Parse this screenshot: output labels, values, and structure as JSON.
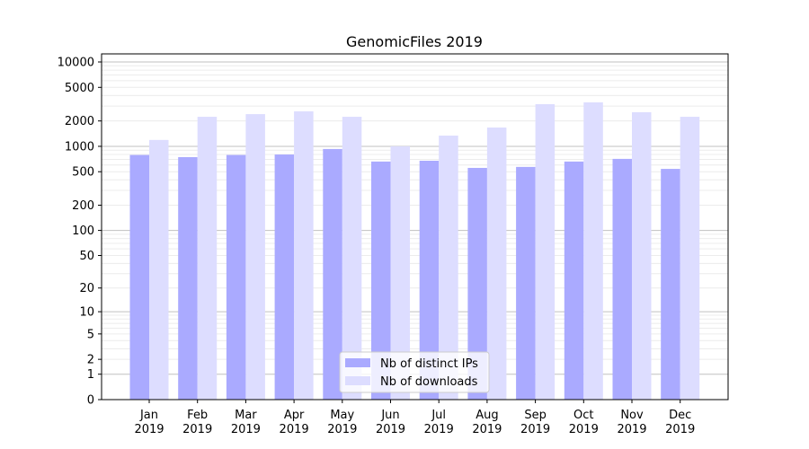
{
  "chart_data": {
    "type": "bar",
    "title": "GenomicFiles 2019",
    "xlabel": "",
    "ylabel": "",
    "yscale": "symlog",
    "ylim": [
      0,
      13000
    ],
    "grid": true,
    "legend_placement": "lower center",
    "categories": [
      "Jan\n2019",
      "Feb\n2019",
      "Mar\n2019",
      "Apr\n2019",
      "May\n2019",
      "Jun\n2019",
      "Jul\n2019",
      "Aug\n2019",
      "Sep\n2019",
      "Oct\n2019",
      "Nov\n2019",
      "Dec\n2019"
    ],
    "yticks": [
      0,
      1,
      2,
      5,
      10,
      20,
      50,
      100,
      200,
      500,
      1000,
      2000,
      5000,
      10000
    ],
    "series": [
      {
        "name": "Nb of distinct IPs",
        "color": "#aaaaff",
        "values": [
          790,
          745,
          790,
          800,
          930,
          660,
          675,
          555,
          570,
          660,
          710,
          540
        ]
      },
      {
        "name": "Nb of downloads",
        "color": "#ddddff",
        "values": [
          1190,
          2240,
          2410,
          2600,
          2240,
          1000,
          1340,
          1670,
          3160,
          3320,
          2540,
          2240
        ]
      }
    ]
  }
}
